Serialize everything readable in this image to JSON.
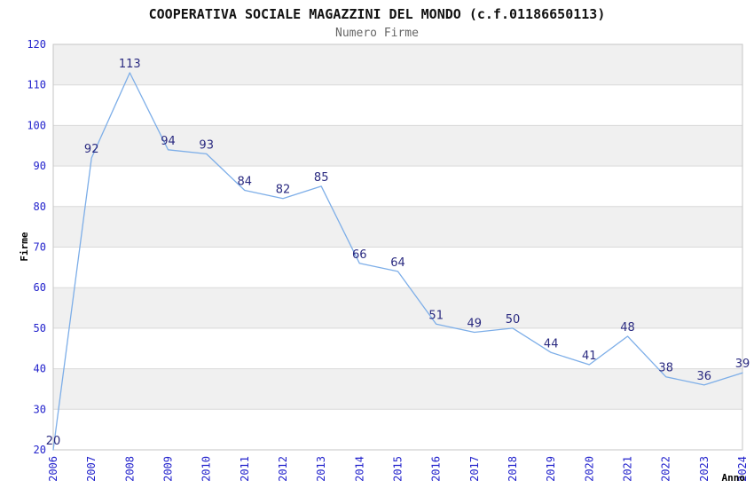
{
  "chart_data": {
    "type": "line",
    "title": "COOPERATIVA SOCIALE MAGAZZINI DEL MONDO (c.f.01186650113)",
    "subtitle": "Numero Firme",
    "xlabel": "Anno",
    "ylabel": "Firme",
    "x": [
      "2006",
      "2007",
      "2008",
      "2009",
      "2010",
      "2011",
      "2012",
      "2013",
      "2014",
      "2015",
      "2016",
      "2017",
      "2018",
      "2019",
      "2020",
      "2021",
      "2022",
      "2023",
      "2024"
    ],
    "values": [
      20,
      92,
      113,
      94,
      93,
      84,
      82,
      85,
      66,
      64,
      51,
      49,
      50,
      44,
      41,
      48,
      38,
      36,
      39
    ],
    "ylim": [
      20,
      120
    ],
    "yticks": [
      20,
      30,
      40,
      50,
      60,
      70,
      80,
      90,
      100,
      110,
      120
    ],
    "grid": true,
    "legend_position": "none",
    "data_labels_shown": true
  },
  "colors": {
    "line": "#7daee8",
    "value_label": "#2a2a80",
    "tick_label": "#2222cc",
    "band_gray": "#f0f0f0",
    "band_white": "#ffffff",
    "gridline": "#d9d9d9",
    "plot_border": "#c6c6c6",
    "title": "#111111",
    "subtitle": "#666666",
    "axis_title": "#000000",
    "background": "#ffffff"
  }
}
